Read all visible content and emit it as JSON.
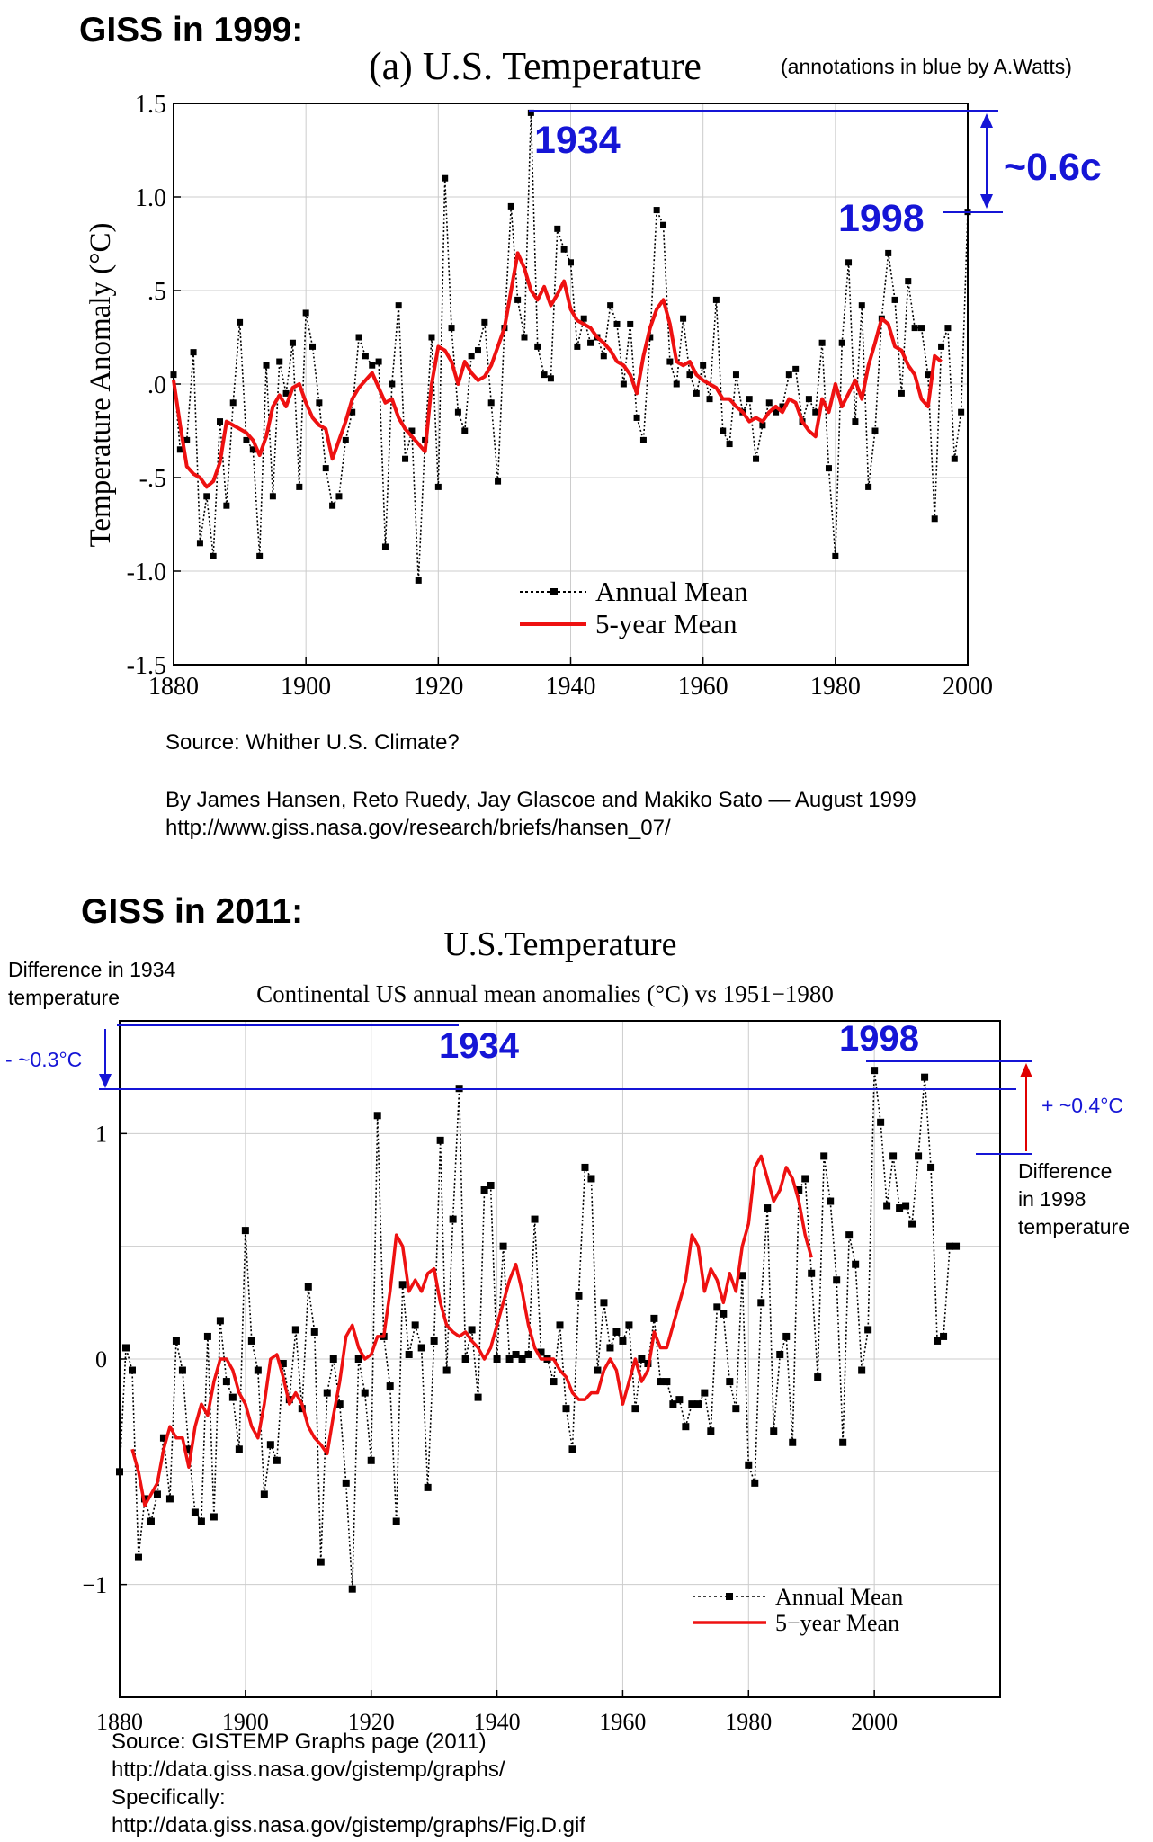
{
  "heading_1999": "GISS in 1999:",
  "heading_2011": "GISS in 2011:",
  "source_1999": {
    "line1": "Source: Whither U.S. Climate?",
    "line2": "By James Hansen, Reto Ruedy, Jay Glascoe and Makiko Sato — August 1999",
    "line3": "http://www.giss.nasa.gov/research/briefs/hansen_07/"
  },
  "source_2011": {
    "line1": "Source: GISTEMP Graphs page (2011)",
    "line2": "http://data.giss.nasa.gov/gistemp/graphs/",
    "line3": "Specifically:",
    "line4": "http://data.giss.nasa.gov/gistemp/graphs/Fig.D.gif"
  },
  "colors": {
    "annual": "#000000",
    "smooth": "#ee1111",
    "annotation": "#1515d6",
    "diff_arrow": "#e00000"
  },
  "chart_data": [
    {
      "type": "line",
      "title": "(a)  U.S. Temperature",
      "note": "(annotations in blue by A.Watts)",
      "ylabel": "Temperature Anomaly (°C)",
      "xlim": [
        1880,
        2000
      ],
      "ylim": [
        -1.5,
        1.5
      ],
      "x_ticks": [
        "1880",
        "1900",
        "1920",
        "1940",
        "1960",
        "1980",
        "2000"
      ],
      "y_ticks": [
        {
          "v": 1.5,
          "label": "1.5"
        },
        {
          "v": 1.0,
          "label": "1.0"
        },
        {
          "v": 0.5,
          "label": ".5"
        },
        {
          "v": 0.0,
          "label": ".0"
        },
        {
          "v": -0.5,
          "label": "-.5"
        },
        {
          "v": -1.0,
          "label": "-1.0"
        },
        {
          "v": -1.5,
          "label": "-1.5"
        }
      ],
      "grid": true,
      "legend": "bottom-center",
      "series": [
        {
          "name": "Annual Mean",
          "x_start": 1880,
          "values": [
            0.05,
            -0.35,
            -0.3,
            0.17,
            -0.85,
            -0.6,
            -0.92,
            -0.2,
            -0.65,
            -0.1,
            0.33,
            -0.3,
            -0.35,
            -0.92,
            0.1,
            -0.6,
            0.12,
            -0.05,
            0.22,
            -0.55,
            0.38,
            0.2,
            -0.1,
            -0.45,
            -0.65,
            -0.6,
            -0.3,
            -0.15,
            0.25,
            0.15,
            0.1,
            0.12,
            -0.87,
            0.0,
            0.42,
            -0.4,
            -0.25,
            -1.05,
            -0.3,
            0.25,
            -0.55,
            1.1,
            0.3,
            -0.15,
            -0.25,
            0.15,
            0.18,
            0.33,
            -0.1,
            -0.52,
            0.3,
            0.95,
            0.45,
            0.25,
            1.45,
            0.2,
            0.05,
            0.03,
            0.83,
            0.72,
            0.65,
            0.2,
            0.35,
            0.22,
            0.25,
            0.15,
            0.42,
            0.32,
            0.0,
            0.32,
            -0.18,
            -0.3,
            0.25,
            0.93,
            0.85,
            0.12,
            0.0,
            0.35,
            0.05,
            -0.05,
            0.1,
            -0.08,
            0.45,
            -0.25,
            -0.32,
            0.05,
            -0.15,
            -0.08,
            -0.4,
            -0.22,
            -0.1,
            -0.15,
            -0.12,
            0.05,
            0.08,
            -0.2,
            -0.08,
            -0.15,
            0.22,
            -0.45,
            -0.92,
            0.22,
            0.65,
            -0.2,
            0.42,
            -0.55,
            -0.25,
            0.35,
            0.7,
            0.45,
            -0.05,
            0.55,
            0.3,
            0.3,
            0.05,
            -0.72,
            0.2,
            0.3,
            -0.4,
            -0.15,
            0.92
          ]
        },
        {
          "name": "5-year Mean",
          "x_start": 1880,
          "values": [
            0.02,
            -0.22,
            -0.44,
            -0.48,
            -0.5,
            -0.55,
            -0.52,
            -0.42,
            -0.2,
            -0.22,
            -0.24,
            -0.26,
            -0.3,
            -0.38,
            -0.28,
            -0.12,
            -0.06,
            -0.12,
            -0.02,
            0.0,
            -0.1,
            -0.18,
            -0.22,
            -0.24,
            -0.4,
            -0.3,
            -0.2,
            -0.08,
            -0.02,
            0.02,
            0.06,
            -0.02,
            -0.1,
            -0.08,
            -0.18,
            -0.24,
            -0.28,
            -0.32,
            -0.36,
            0.0,
            0.2,
            0.18,
            0.12,
            0.0,
            0.12,
            0.06,
            0.02,
            0.04,
            0.1,
            0.2,
            0.3,
            0.5,
            0.7,
            0.62,
            0.5,
            0.45,
            0.52,
            0.42,
            0.48,
            0.55,
            0.4,
            0.34,
            0.32,
            0.3,
            0.25,
            0.22,
            0.18,
            0.12,
            0.1,
            0.05,
            -0.05,
            0.15,
            0.3,
            0.4,
            0.45,
            0.32,
            0.12,
            0.1,
            0.12,
            0.05,
            0.02,
            0.0,
            -0.02,
            -0.08,
            -0.08,
            -0.12,
            -0.15,
            -0.2,
            -0.18,
            -0.2,
            -0.15,
            -0.12,
            -0.15,
            -0.08,
            -0.1,
            -0.2,
            -0.25,
            -0.28,
            -0.08,
            -0.15,
            0.0,
            -0.12,
            -0.05,
            0.02,
            -0.08,
            0.1,
            0.22,
            0.35,
            0.32,
            0.2,
            0.18,
            0.1,
            0.05,
            -0.08,
            -0.12,
            0.15,
            0.12
          ]
        }
      ],
      "annotations": {
        "y1934": "1934",
        "y1998": "1998",
        "diff": "~0.6c"
      }
    },
    {
      "type": "line",
      "title": "U.S.Temperature",
      "subtitle": "Continental US annual mean anomalies (°C) vs 1951−1980",
      "xlim": [
        1880,
        2020
      ],
      "ylim": [
        -1.5,
        1.5
      ],
      "x_ticks": [
        "1880",
        "1900",
        "1920",
        "1940",
        "1960",
        "1980",
        "2000"
      ],
      "y_ticks": [
        {
          "v": 1,
          "label": "1"
        },
        {
          "v": 0,
          "label": "0"
        },
        {
          "v": -1,
          "label": "−1"
        }
      ],
      "grid": true,
      "legend": "bottom-right",
      "series": [
        {
          "name": "Annual Mean",
          "x_start": 1880,
          "values": [
            -0.5,
            0.05,
            -0.05,
            -0.88,
            -0.62,
            -0.72,
            -0.6,
            -0.35,
            -0.62,
            0.08,
            -0.05,
            -0.4,
            -0.68,
            -0.72,
            0.1,
            -0.7,
            0.17,
            -0.1,
            -0.17,
            -0.4,
            0.57,
            0.08,
            -0.05,
            -0.6,
            -0.38,
            -0.45,
            -0.02,
            -0.18,
            0.13,
            -0.22,
            0.32,
            0.12,
            -0.9,
            -0.15,
            0.0,
            -0.2,
            -0.55,
            -1.02,
            0.0,
            -0.15,
            -0.45,
            1.08,
            0.1,
            -0.12,
            -0.72,
            0.33,
            0.02,
            0.15,
            0.05,
            -0.57,
            0.08,
            0.97,
            -0.05,
            0.62,
            1.2,
            0.0,
            0.13,
            -0.17,
            0.75,
            0.77,
            0.0,
            0.5,
            0.0,
            0.02,
            0.0,
            0.02,
            0.62,
            0.03,
            0.0,
            -0.1,
            0.15,
            -0.22,
            -0.4,
            0.28,
            0.85,
            0.8,
            -0.05,
            0.25,
            0.05,
            0.12,
            0.08,
            0.15,
            -0.22,
            0.0,
            -0.02,
            0.18,
            -0.1,
            -0.1,
            -0.2,
            -0.18,
            -0.3,
            -0.2,
            -0.2,
            -0.15,
            -0.32,
            0.23,
            0.2,
            -0.1,
            -0.22,
            0.37,
            -0.47,
            -0.55,
            0.25,
            0.67,
            -0.32,
            0.02,
            0.1,
            -0.37,
            0.75,
            0.8,
            0.38,
            -0.08,
            0.9,
            0.7,
            0.35,
            -0.37,
            0.55,
            0.42,
            -0.05,
            0.13,
            1.28,
            1.05,
            0.68,
            0.9,
            0.67,
            0.68,
            0.6,
            0.9,
            1.25,
            0.85,
            0.08,
            0.1,
            0.5,
            0.5
          ]
        },
        {
          "name": "5−year Mean",
          "x_start": 1882,
          "values": [
            -0.4,
            -0.5,
            -0.65,
            -0.6,
            -0.55,
            -0.4,
            -0.3,
            -0.35,
            -0.35,
            -0.48,
            -0.3,
            -0.2,
            -0.25,
            -0.1,
            0.0,
            0.0,
            -0.05,
            -0.15,
            -0.2,
            -0.3,
            -0.35,
            -0.2,
            0.0,
            0.02,
            -0.08,
            -0.2,
            -0.15,
            -0.2,
            -0.3,
            -0.35,
            -0.38,
            -0.42,
            -0.25,
            -0.1,
            0.1,
            0.15,
            0.05,
            0.0,
            0.02,
            0.1,
            0.1,
            0.3,
            0.55,
            0.5,
            0.3,
            0.35,
            0.3,
            0.38,
            0.4,
            0.25,
            0.15,
            0.12,
            0.1,
            0.12,
            0.08,
            0.05,
            0.0,
            0.05,
            0.15,
            0.25,
            0.35,
            0.42,
            0.3,
            0.15,
            0.05,
            0.0,
            0.0,
            0.0,
            -0.05,
            -0.08,
            -0.15,
            -0.18,
            -0.18,
            -0.15,
            -0.15,
            -0.05,
            0.0,
            -0.05,
            -0.2,
            -0.1,
            0.0,
            -0.1,
            -0.05,
            0.12,
            0.05,
            0.05,
            0.15,
            0.25,
            0.35,
            0.55,
            0.5,
            0.3,
            0.4,
            0.35,
            0.25,
            0.38,
            0.3,
            0.5,
            0.6,
            0.85,
            0.9,
            0.8,
            0.7,
            0.75,
            0.85,
            0.8,
            0.7,
            0.55,
            0.45
          ]
        }
      ],
      "annotations": {
        "y1934": "1934",
        "y1998": "1998",
        "diff_1934": "- ~0.3°C",
        "diff_1998": "+ ~0.4°C",
        "label_1934_line1": "Difference in 1934",
        "label_1934_line2": "temperature",
        "label_1998_line1": "Difference",
        "label_1998_line2": "in 1998",
        "label_1998_line3": "temperature"
      }
    }
  ]
}
